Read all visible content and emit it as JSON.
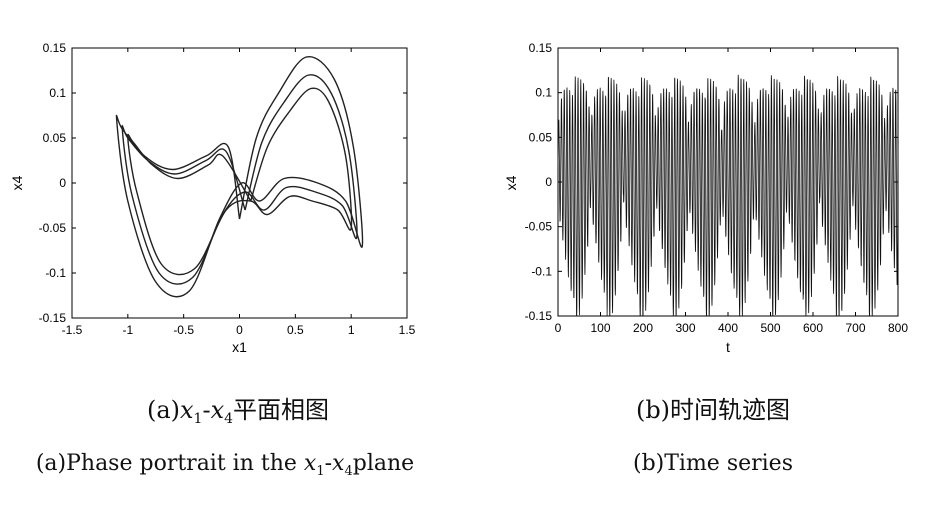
{
  "chart_data": [
    {
      "type": "line",
      "panel": "a",
      "xlabel": "x1",
      "ylabel": "x4",
      "xlim": [
        -1.5,
        1.5
      ],
      "ylim": [
        -0.15,
        0.15
      ],
      "xticks": [
        "-1.5",
        "-1",
        "-0.5",
        "0",
        "0.5",
        "1",
        "1.5"
      ],
      "yticks": [
        "0.15",
        "0.1",
        "0.05",
        "0",
        "-0.05",
        "-0.1",
        "-0.15"
      ],
      "grid": false,
      "series": [
        {
          "x": [
            0.0,
            0.15,
            0.35,
            0.6,
            0.85,
            1.02,
            1.1,
            0.95,
            0.7,
            0.4,
            0.18,
            0.02,
            -0.18,
            -0.45,
            -0.75,
            -1.0,
            -1.1,
            -1.05,
            -0.85,
            -0.6,
            -0.3,
            -0.1,
            0.0
          ],
          "y": [
            -0.04,
            0.05,
            0.1,
            0.14,
            0.115,
            0.04,
            -0.07,
            -0.02,
            0.0,
            0.005,
            -0.02,
            0.0,
            -0.04,
            -0.12,
            -0.11,
            -0.02,
            0.07,
            0.06,
            0.03,
            0.015,
            0.03,
            0.04,
            -0.04
          ]
        },
        {
          "x": [
            0.05,
            0.2,
            0.4,
            0.62,
            0.82,
            0.98,
            1.05,
            0.92,
            0.68,
            0.42,
            0.22,
            0.05,
            -0.15,
            -0.42,
            -0.72,
            -0.96,
            -1.05,
            -1.0,
            -0.82,
            -0.58,
            -0.3,
            -0.12,
            0.05
          ],
          "y": [
            -0.03,
            0.045,
            0.09,
            0.12,
            0.1,
            0.035,
            -0.06,
            -0.025,
            -0.01,
            -0.005,
            -0.03,
            -0.01,
            -0.035,
            -0.105,
            -0.1,
            -0.015,
            0.06,
            0.05,
            0.025,
            0.01,
            0.025,
            0.035,
            -0.03
          ]
        },
        {
          "x": [
            0.1,
            0.25,
            0.45,
            0.64,
            0.8,
            0.95,
            1.0,
            0.88,
            0.65,
            0.45,
            0.25,
            0.1,
            -0.12,
            -0.4,
            -0.7,
            -0.92,
            -1.0,
            -0.95,
            -0.78,
            -0.55,
            -0.28,
            -0.15,
            0.1
          ],
          "y": [
            -0.02,
            0.04,
            0.08,
            0.105,
            0.09,
            0.03,
            -0.05,
            -0.03,
            -0.02,
            -0.015,
            -0.035,
            -0.02,
            -0.03,
            -0.095,
            -0.09,
            -0.01,
            0.05,
            0.045,
            0.02,
            0.005,
            0.02,
            0.03,
            -0.02
          ]
        }
      ]
    },
    {
      "type": "line",
      "panel": "b",
      "xlabel": "t",
      "ylabel": "x4",
      "xlim": [
        0,
        800
      ],
      "ylim": [
        -0.15,
        0.15
      ],
      "xticks": [
        "0",
        "100",
        "200",
        "300",
        "400",
        "500",
        "600",
        "700",
        "800"
      ],
      "yticks": [
        "0.15",
        "0.1",
        "0.05",
        "0",
        "-0.05",
        "-0.1",
        "-0.15"
      ],
      "grid": false,
      "burst_period": 77,
      "oscillation_period": 6.5,
      "amplitude_max": 0.14
    }
  ],
  "captions": {
    "a_cn_prefix": "(a)",
    "a_cn_var1": "x",
    "a_cn_sub1": "1",
    "a_cn_dash": "-",
    "a_cn_var2": "x",
    "a_cn_sub2": "4",
    "a_cn_suffix": "平面相图",
    "a_en_prefix": "(a)Phase portrait in the ",
    "a_en_var1": "x",
    "a_en_sub1": "1",
    "a_en_dash": "-",
    "a_en_var2": "x",
    "a_en_sub2": "4",
    "a_en_suffix": "plane",
    "b_cn": "(b)时间轨迹图",
    "b_en": "(b)Time series"
  }
}
